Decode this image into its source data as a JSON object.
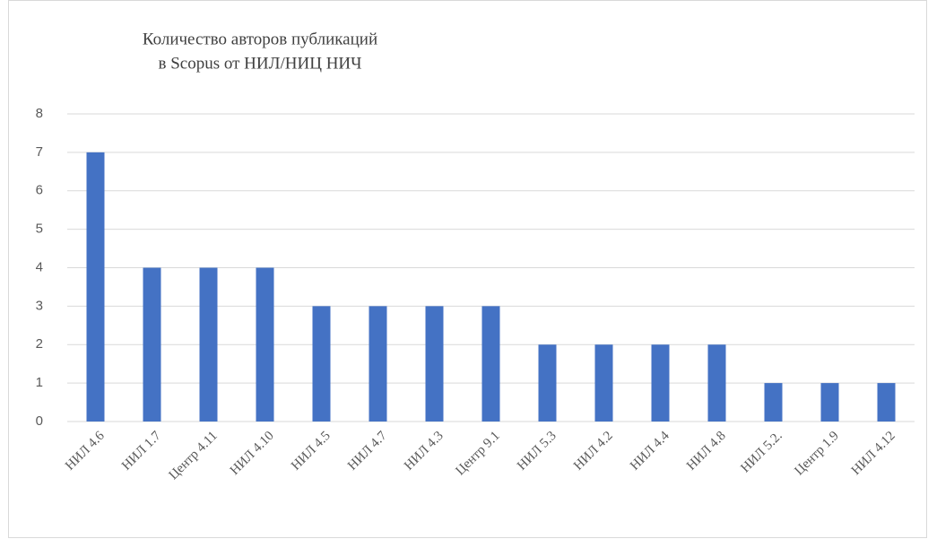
{
  "chart_data": {
    "type": "bar",
    "title": [
      "Количество авторов публикаций",
      "в Scopus от НИЛ/НИЦ НИЧ"
    ],
    "categories": [
      "НИЛ 4.6",
      "НИЛ 1.7",
      "Центр 4.11",
      "НИЛ 4.10",
      "НИЛ 4.5",
      "НИЛ 4.7",
      "НИЛ 4.3",
      "Центр 9.1",
      "НИЛ 5.3",
      "НИЛ 4.2",
      "НИЛ 4.4",
      "НИЛ 4.8",
      "НИЛ 5.2.",
      "Центр 1.9",
      "НИЛ 4.12"
    ],
    "values": [
      7,
      4,
      4,
      4,
      3,
      3,
      3,
      3,
      2,
      2,
      2,
      2,
      1,
      1,
      1
    ],
    "color": "#4472c4",
    "ylim": [
      0,
      8
    ],
    "yticks": [
      0,
      1,
      2,
      3,
      4,
      5,
      6,
      7,
      8
    ],
    "grid": true
  }
}
